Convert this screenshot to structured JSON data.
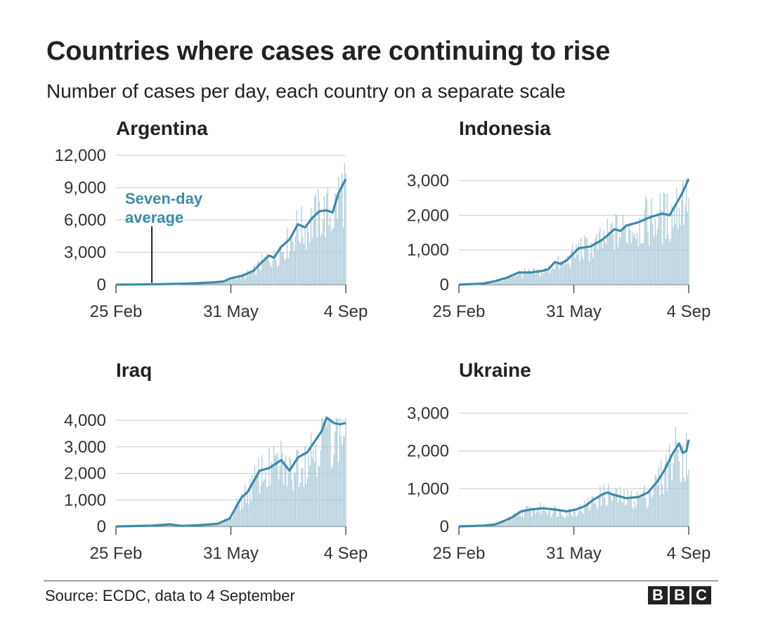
{
  "title": "Countries where cases are continuing to rise",
  "subtitle": "Number of cases per day, each country on a separate scale",
  "source": "Source: ECDC, data to 4 September",
  "logo": [
    "B",
    "B",
    "C"
  ],
  "colors": {
    "bar": "#a9c8d6",
    "line": "#3d8ba8",
    "grid": "#cccccc",
    "axis": "#555555",
    "annotation": "#3d8ba8"
  },
  "chart_data": [
    {
      "type": "bar",
      "title": "Argentina",
      "x_ticks": [
        "25 Feb",
        "31 May",
        "4 Sep"
      ],
      "x_range_days": [
        0,
        192
      ],
      "y_ticks": [
        0,
        3000,
        6000,
        9000,
        12000
      ],
      "y_tick_labels": [
        "0",
        "3,000",
        "6,000",
        "9,000",
        "12,000"
      ],
      "ylim": [
        0,
        12000
      ],
      "series": [
        {
          "name": "Seven-day average",
          "points": [
            [
              0,
              0
            ],
            [
              20,
              20
            ],
            [
              40,
              50
            ],
            [
              60,
              100
            ],
            [
              80,
              200
            ],
            [
              90,
              300
            ],
            [
              96,
              600
            ],
            [
              105,
              800
            ],
            [
              115,
              1300
            ],
            [
              122,
              2100
            ],
            [
              128,
              2700
            ],
            [
              132,
              2500
            ],
            [
              138,
              3500
            ],
            [
              145,
              4200
            ],
            [
              152,
              5600
            ],
            [
              158,
              5300
            ],
            [
              164,
              6200
            ],
            [
              170,
              6800
            ],
            [
              176,
              6900
            ],
            [
              181,
              6700
            ],
            [
              186,
              8500
            ],
            [
              192,
              9800
            ]
          ]
        }
      ],
      "annotation": {
        "text_lines": [
          "Seven-day",
          "average"
        ],
        "day": 30
      }
    },
    {
      "type": "bar",
      "title": "Indonesia",
      "x_ticks": [
        "25 Feb",
        "31 May",
        "4 Sep"
      ],
      "x_range_days": [
        0,
        192
      ],
      "y_ticks": [
        0,
        1000,
        2000,
        3000
      ],
      "y_tick_labels": [
        "0",
        "1,000",
        "2,000",
        "3,000"
      ],
      "ylim": [
        0,
        3000
      ],
      "series": [
        {
          "name": "Seven-day average",
          "points": [
            [
              0,
              0
            ],
            [
              20,
              30
            ],
            [
              30,
              100
            ],
            [
              40,
              200
            ],
            [
              50,
              350
            ],
            [
              60,
              350
            ],
            [
              70,
              400
            ],
            [
              75,
              450
            ],
            [
              80,
              650
            ],
            [
              85,
              600
            ],
            [
              90,
              700
            ],
            [
              100,
              1050
            ],
            [
              110,
              1100
            ],
            [
              120,
              1300
            ],
            [
              130,
              1600
            ],
            [
              135,
              1550
            ],
            [
              140,
              1700
            ],
            [
              150,
              1800
            ],
            [
              160,
              1950
            ],
            [
              170,
              2050
            ],
            [
              176,
              2000
            ],
            [
              181,
              2300
            ],
            [
              186,
              2600
            ],
            [
              192,
              3050
            ]
          ]
        }
      ]
    },
    {
      "type": "bar",
      "title": "Iraq",
      "x_ticks": [
        "25 Feb",
        "31 May",
        "4 Sep"
      ],
      "x_range_days": [
        0,
        192
      ],
      "y_ticks": [
        0,
        1000,
        2000,
        3000,
        4000
      ],
      "y_tick_labels": [
        "0",
        "1,000",
        "2,000",
        "3,000",
        "4,000"
      ],
      "ylim": [
        0,
        4000
      ],
      "series": [
        {
          "name": "Seven-day average",
          "points": [
            [
              0,
              0
            ],
            [
              30,
              30
            ],
            [
              45,
              80
            ],
            [
              55,
              20
            ],
            [
              70,
              50
            ],
            [
              85,
              100
            ],
            [
              95,
              300
            ],
            [
              100,
              700
            ],
            [
              105,
              1100
            ],
            [
              110,
              1300
            ],
            [
              115,
              1700
            ],
            [
              120,
              2100
            ],
            [
              128,
              2200
            ],
            [
              138,
              2500
            ],
            [
              145,
              2100
            ],
            [
              152,
              2600
            ],
            [
              160,
              2800
            ],
            [
              166,
              3200
            ],
            [
              172,
              3600
            ],
            [
              176,
              4100
            ],
            [
              182,
              3900
            ],
            [
              187,
              3850
            ],
            [
              192,
              3900
            ]
          ]
        }
      ]
    },
    {
      "type": "bar",
      "title": "Ukraine",
      "x_ticks": [
        "25 Feb",
        "31 May",
        "4 Sep"
      ],
      "x_range_days": [
        0,
        192
      ],
      "y_ticks": [
        0,
        1000,
        2000,
        3000
      ],
      "y_tick_labels": [
        "0",
        "1,000",
        "2,000",
        "3,000"
      ],
      "ylim": [
        0,
        3000
      ],
      "series": [
        {
          "name": "Seven-day average",
          "points": [
            [
              0,
              0
            ],
            [
              20,
              20
            ],
            [
              30,
              50
            ],
            [
              38,
              150
            ],
            [
              45,
              250
            ],
            [
              52,
              400
            ],
            [
              60,
              450
            ],
            [
              70,
              480
            ],
            [
              80,
              450
            ],
            [
              90,
              400
            ],
            [
              98,
              450
            ],
            [
              106,
              550
            ],
            [
              112,
              700
            ],
            [
              120,
              850
            ],
            [
              124,
              900
            ],
            [
              128,
              850
            ],
            [
              134,
              800
            ],
            [
              140,
              750
            ],
            [
              150,
              780
            ],
            [
              158,
              900
            ],
            [
              166,
              1200
            ],
            [
              172,
              1500
            ],
            [
              178,
              1900
            ],
            [
              184,
              2200
            ],
            [
              187,
              1950
            ],
            [
              190,
              2000
            ],
            [
              192,
              2300
            ]
          ]
        }
      ]
    }
  ]
}
